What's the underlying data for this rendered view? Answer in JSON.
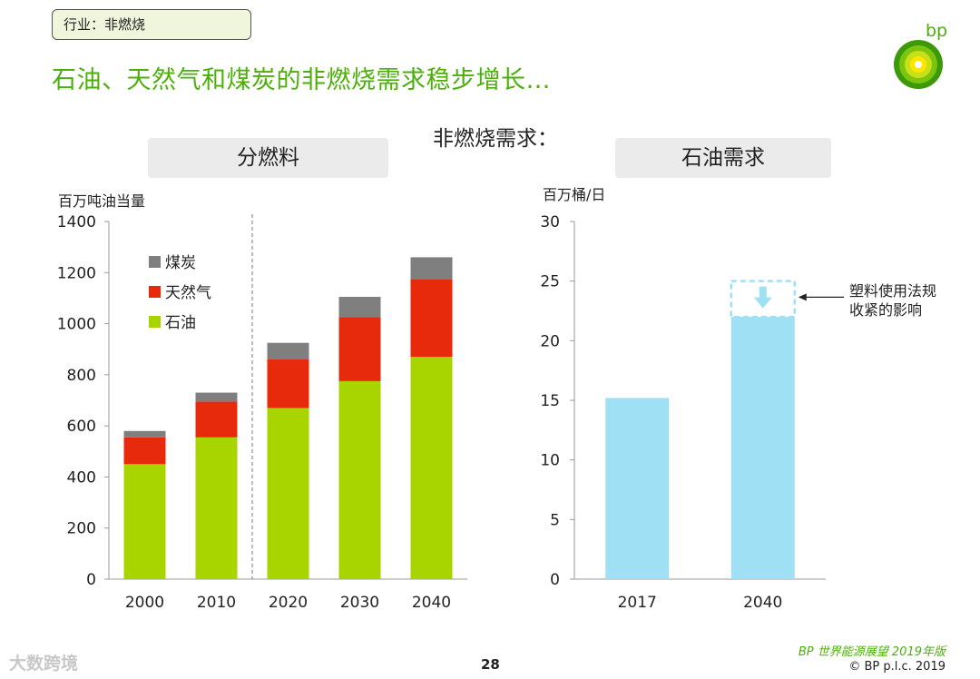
{
  "header": {
    "tag": "行业：非燃烧",
    "title": "石油、天然气和煤炭的非燃烧需求稳步增长…",
    "subtitle": "非燃烧需求：",
    "logo_text": "bp"
  },
  "left_panel": {
    "label": "分燃料",
    "unit": "百万吨油当量"
  },
  "right_panel": {
    "label": "石油需求",
    "unit": "百万桶/日"
  },
  "chart_data": [
    {
      "type": "bar",
      "stacked": true,
      "title": "分燃料",
      "ylabel": "百万吨油当量",
      "ylim": [
        0,
        1400
      ],
      "yticks": [
        0,
        200,
        400,
        600,
        800,
        1000,
        1200,
        1400
      ],
      "categories": [
        "2000",
        "2010",
        "2020",
        "2030",
        "2040"
      ],
      "series": [
        {
          "name": "石油",
          "color": "#a8d400",
          "values": [
            450,
            555,
            670,
            775,
            870
          ]
        },
        {
          "name": "天然气",
          "color": "#e82a0c",
          "values": [
            105,
            140,
            190,
            250,
            305
          ]
        },
        {
          "name": "煤炭",
          "color": "#7f7f7f",
          "values": [
            25,
            35,
            65,
            80,
            85
          ]
        }
      ],
      "legend": [
        "煤炭",
        "天然气",
        "石油"
      ],
      "legend_position": "top-left",
      "divider_after": "2010"
    },
    {
      "type": "bar",
      "title": "石油需求",
      "ylabel": "百万桶/日",
      "ylim": [
        0,
        30
      ],
      "yticks": [
        0,
        5,
        10,
        15,
        20,
        25,
        30
      ],
      "categories": [
        "2017",
        "2040"
      ],
      "values": [
        15.2,
        22
      ],
      "color": "#9fe0f5",
      "dashed_top": {
        "category": "2040",
        "from": 22,
        "to": 25
      },
      "annotation": "塑料使用法规\n收紧的影响"
    }
  ],
  "callout": {
    "line1": "塑料使用法规",
    "line2": "收紧的影响"
  },
  "footer": {
    "page": "28",
    "source_italic": "BP 世界能源展望 2019年版",
    "copyright": "© BP p.l.c. 2019",
    "watermark": "大数跨境"
  }
}
